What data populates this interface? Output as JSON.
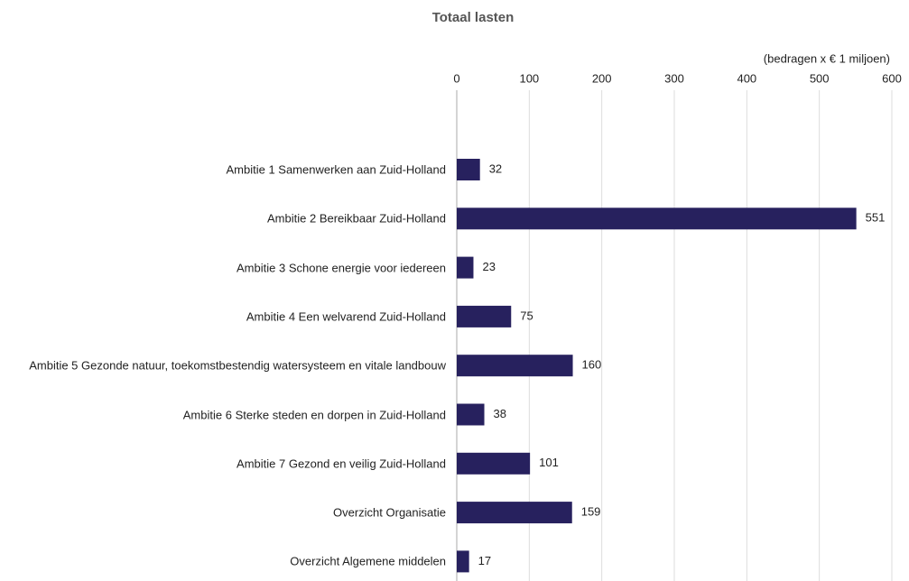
{
  "chart_data": {
    "type": "bar",
    "orientation": "horizontal",
    "title": "Totaal lasten",
    "axis_label": "(bedragen  x € 1 miljoen)",
    "categories": [
      "Ambitie 1 Samenwerken aan Zuid-Holland",
      "Ambitie 2 Bereikbaar Zuid-Holland",
      "Ambitie 3 Schone energie voor iedereen",
      "Ambitie 4 Een welvarend Zuid-Holland",
      "Ambitie 5 Gezonde natuur, toekomstbestendig watersysteem en vitale landbouw",
      "Ambitie 6 Sterke steden en dorpen in Zuid-Holland",
      "Ambitie 7 Gezond en veilig Zuid-Holland",
      "Overzicht Organisatie",
      "Overzicht Algemene middelen"
    ],
    "values": [
      32,
      551,
      23,
      75,
      160,
      38,
      101,
      159,
      17
    ],
    "color": "#27215e",
    "xlim": [
      0,
      600
    ],
    "xticks": [
      0,
      100,
      200,
      300,
      400,
      500,
      600
    ],
    "grid": true
  }
}
